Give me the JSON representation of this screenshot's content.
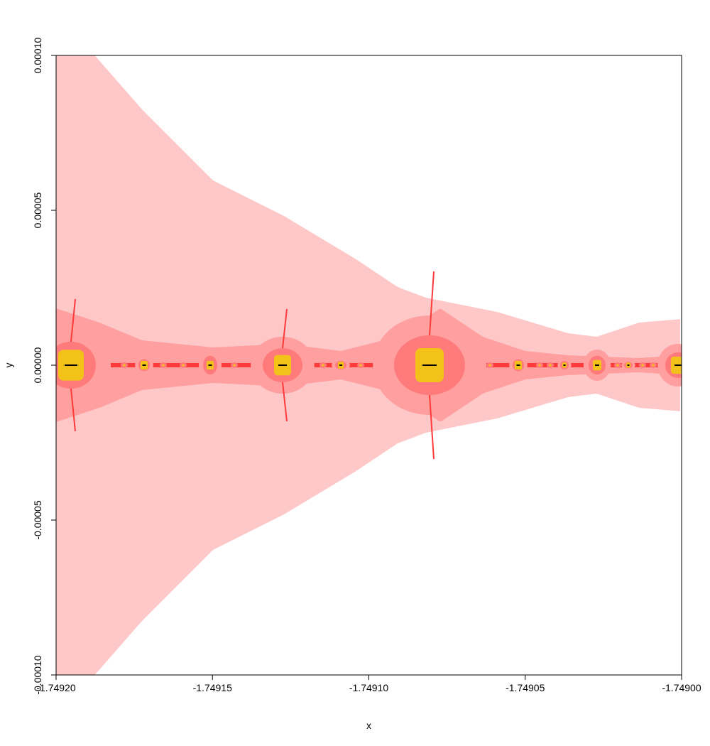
{
  "chart_data": {
    "type": "heatmap",
    "title": "",
    "xlabel": "x",
    "ylabel": "y",
    "xlim": [
      -1.7492,
      -1.749
    ],
    "ylim": [
      -0.0001,
      0.0001
    ],
    "x_ticks": [
      -1.7492,
      -1.74915,
      -1.7491,
      -1.74905,
      -1.749
    ],
    "x_tick_labels": [
      "-1.74920",
      "-1.74915",
      "-1.74910",
      "-1.74905",
      "-1.74900"
    ],
    "y_ticks": [
      -0.0001,
      -5e-05,
      0,
      5e-05,
      0.0001
    ],
    "y_tick_labels": [
      "-0.00010",
      "-0.00005",
      "0.00000",
      "0.00005",
      "0.00010"
    ],
    "grid": false,
    "legend": "none",
    "colors": {
      "level1": "#ffc8c8",
      "level2": "#ff9f9f",
      "level3": "#ff7a7a",
      "level4": "#ff3a3a",
      "core": "#f2c21b",
      "core_dark": "#000000",
      "axis": "#000000"
    }
  }
}
